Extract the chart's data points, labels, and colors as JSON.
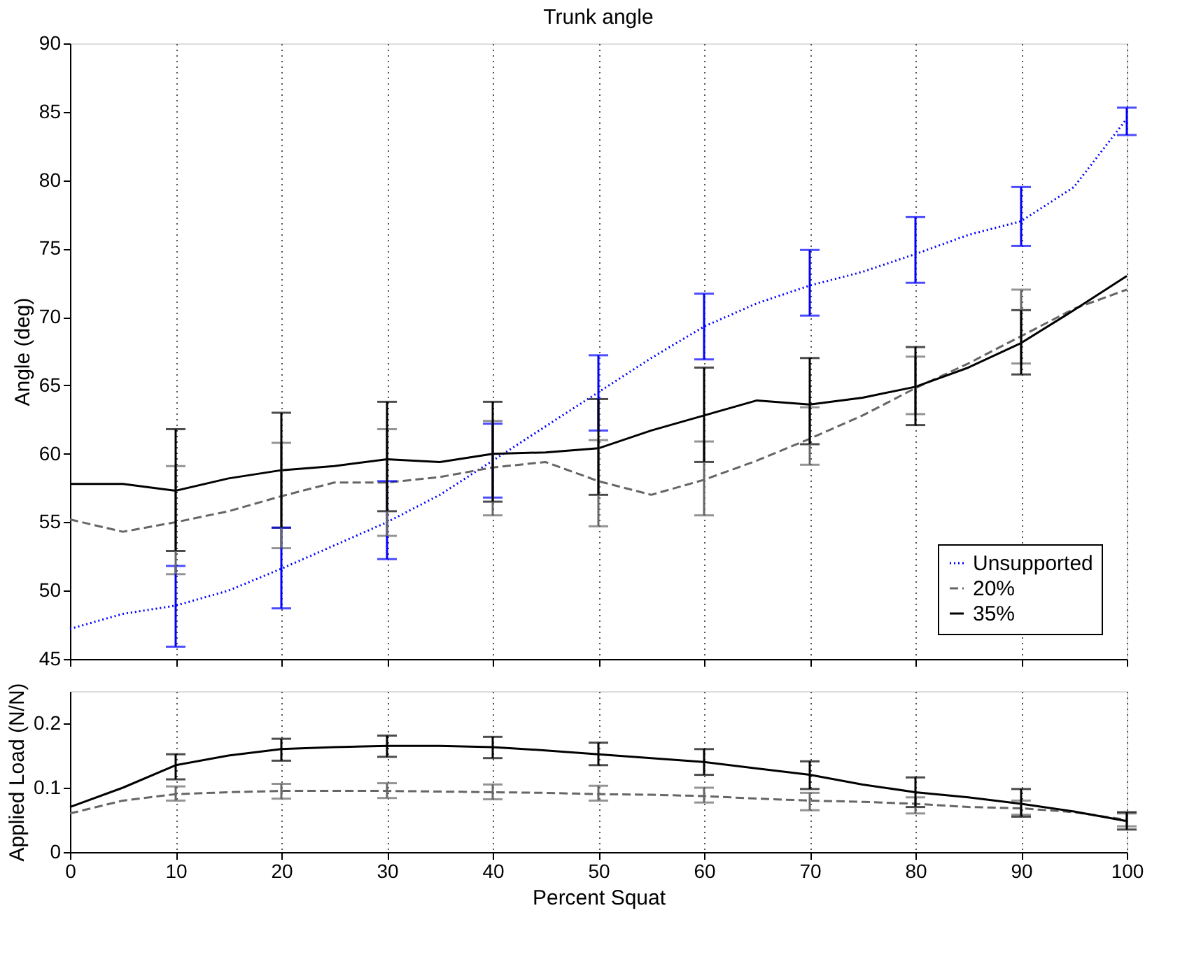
{
  "chart_data": [
    {
      "type": "line",
      "title": "Trunk angle",
      "ylabel": "Angle (deg)",
      "xlim": [
        0,
        100
      ],
      "xticks": [
        0,
        10,
        20,
        30,
        40,
        50,
        60,
        70,
        80,
        90,
        100
      ],
      "ylim": [
        45,
        90
      ],
      "yticks": [
        45,
        50,
        55,
        60,
        65,
        70,
        75,
        80,
        85,
        90
      ],
      "grid": "x",
      "legend": "bottom right",
      "tick_labels": "y",
      "marker": "none",
      "x": [
        0,
        5,
        10,
        15,
        20,
        25,
        30,
        35,
        40,
        45,
        50,
        55,
        60,
        65,
        70,
        75,
        80,
        85,
        90,
        95,
        100
      ],
      "series": [
        {
          "name": "Unsupported",
          "color": "#0000ff",
          "line_style": "dotted",
          "values": [
            47.2,
            48.3,
            48.9,
            50,
            51.6,
            53.3,
            55,
            57,
            59.5,
            62,
            64.5,
            67,
            69.3,
            71,
            72.3,
            73.3,
            74.6,
            76,
            77,
            79.5,
            84.5
          ],
          "errors": [
            null,
            null,
            [
              45.9,
              51.8
            ],
            null,
            [
              48.7,
              54.6
            ],
            null,
            [
              52.3,
              58
            ],
            null,
            [
              56.8,
              62.2
            ],
            null,
            [
              61.7,
              67.2
            ],
            null,
            [
              66.9,
              71.7
            ],
            null,
            [
              70.1,
              74.9
            ],
            null,
            [
              72.5,
              77.3
            ],
            null,
            [
              75.2,
              79.5
            ],
            null,
            [
              83.3,
              85.3
            ]
          ]
        },
        {
          "name": "20%",
          "color": "#666666",
          "line_style": "dashed",
          "values": [
            55.2,
            54.3,
            55,
            55.8,
            56.9,
            57.9,
            57.9,
            58.3,
            59,
            59.4,
            58,
            57,
            58.1,
            59.5,
            61.1,
            62.8,
            64.8,
            66.6,
            68.6,
            70.6,
            72
          ],
          "errors": [
            null,
            null,
            [
              51.2,
              59.1
            ],
            null,
            [
              53.1,
              60.8
            ],
            null,
            [
              54,
              61.8
            ],
            null,
            [
              55.5,
              62.4
            ],
            null,
            [
              54.7,
              61
            ],
            null,
            [
              55.5,
              60.9
            ],
            null,
            [
              59.2,
              63.4
            ],
            null,
            [
              62.9,
              67.1
            ],
            null,
            [
              66.6,
              72
            ],
            null,
            null
          ]
        },
        {
          "name": "35%",
          "color": "#000000",
          "line_style": "solid",
          "values": [
            57.8,
            57.8,
            57.3,
            58.2,
            58.8,
            59.1,
            59.6,
            59.4,
            60,
            60.1,
            60.4,
            61.7,
            62.8,
            63.9,
            63.6,
            64.1,
            64.9,
            66.3,
            68.1,
            70.5,
            73
          ],
          "errors": [
            null,
            null,
            [
              52.9,
              61.8
            ],
            null,
            [
              54.6,
              63
            ],
            null,
            [
              55.8,
              63.8
            ],
            null,
            [
              56.5,
              63.8
            ],
            null,
            [
              57,
              64
            ],
            null,
            [
              59.4,
              66.3
            ],
            null,
            [
              60.7,
              67
            ],
            null,
            [
              62.1,
              67.8
            ],
            null,
            [
              65.8,
              70.5
            ],
            null,
            null
          ]
        }
      ]
    },
    {
      "type": "line",
      "xlabel": "Percent Squat",
      "ylabel": "Applied Load (N/N)",
      "xlim": [
        0,
        100
      ],
      "xticks": [
        0,
        10,
        20,
        30,
        40,
        50,
        60,
        70,
        80,
        90,
        100
      ],
      "ylim": [
        0,
        0.25
      ],
      "yticks": [
        0,
        0.1,
        0.2
      ],
      "grid": "x",
      "marker": "none",
      "x": [
        0,
        5,
        10,
        15,
        20,
        25,
        30,
        35,
        40,
        45,
        50,
        55,
        60,
        65,
        70,
        75,
        80,
        85,
        90,
        95,
        100
      ],
      "series": [
        {
          "color": "#666666",
          "line_style": "dashed",
          "values": [
            0.06,
            0.08,
            0.09,
            0.093,
            0.095,
            0.095,
            0.095,
            0.094,
            0.093,
            0.092,
            0.09,
            0.089,
            0.087,
            0.083,
            0.08,
            0.078,
            0.075,
            0.07,
            0.068,
            0.062,
            0.05
          ],
          "errors": [
            null,
            null,
            [
              0.08,
              0.102
            ],
            null,
            [
              0.083,
              0.106
            ],
            null,
            [
              0.084,
              0.107
            ],
            null,
            [
              0.082,
              0.105
            ],
            null,
            [
              0.08,
              0.103
            ],
            null,
            [
              0.077,
              0.1
            ],
            null,
            [
              0.065,
              0.092
            ],
            null,
            [
              0.06,
              0.085
            ],
            null,
            [
              0.058,
              0.08
            ],
            null,
            [
              0.04,
              0.06
            ]
          ]
        },
        {
          "color": "#000000",
          "line_style": "solid",
          "values": [
            0.07,
            0.1,
            0.135,
            0.15,
            0.16,
            0.163,
            0.165,
            0.165,
            0.163,
            0.158,
            0.152,
            0.146,
            0.14,
            0.13,
            0.12,
            0.105,
            0.093,
            0.085,
            0.075,
            0.063,
            0.048
          ],
          "errors": [
            null,
            null,
            [
              0.113,
              0.152
            ],
            null,
            [
              0.142,
              0.176
            ],
            null,
            [
              0.148,
              0.181
            ],
            null,
            [
              0.146,
              0.179
            ],
            null,
            [
              0.135,
              0.17
            ],
            null,
            [
              0.12,
              0.16
            ],
            null,
            [
              0.098,
              0.141
            ],
            null,
            [
              0.07,
              0.116
            ],
            null,
            [
              0.055,
              0.098
            ],
            null,
            [
              0.035,
              0.062
            ]
          ]
        }
      ]
    }
  ]
}
